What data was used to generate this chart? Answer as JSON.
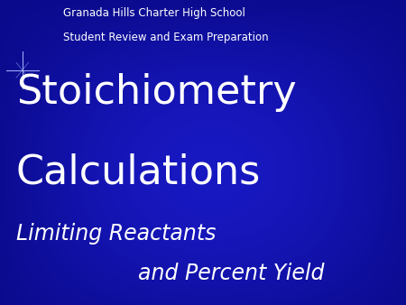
{
  "title_line1": "Stoichiometry",
  "title_line2": "Calculations",
  "subtitle_line1": "Limiting Reactants",
  "subtitle_line2": "and Percent Yield",
  "header_line1": "Granada Hills Charter High School",
  "header_line2": "Student Review and Exam Preparation",
  "text_color": "#ffffff",
  "title_fontsize": 32,
  "subtitle_fontsize": 17,
  "header_fontsize": 8.5,
  "star_color": "#aabbff",
  "bg_dark": [
    0.0,
    0.0,
    0.35
  ],
  "bg_bright": [
    0.1,
    0.1,
    0.85
  ]
}
